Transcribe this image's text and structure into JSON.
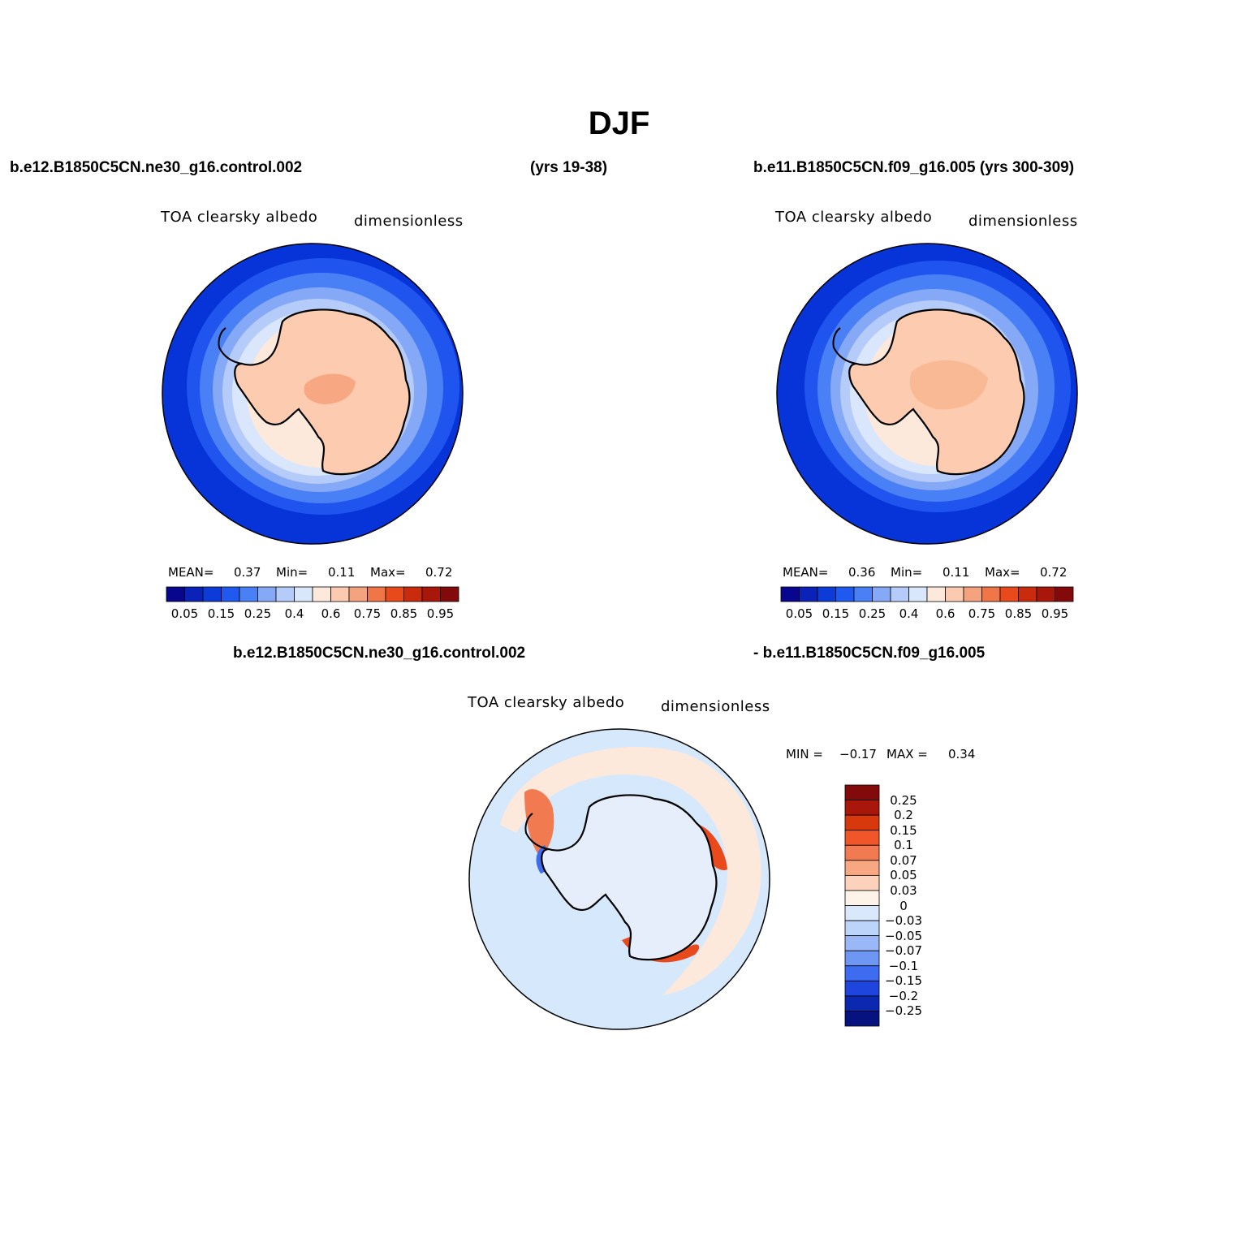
{
  "title": "DJF",
  "case_left": "b.e12.B1850C5CN.ne30_g16.control.002",
  "years_left": "(yrs 19-38)",
  "case_right": "b.e11.B1850C5CN.f09_g16.005 (yrs 300-309)",
  "diff_case_left": "b.e12.B1850C5CN.ne30_g16.control.002",
  "diff_case_right": "- b.e11.B1850C5CN.f09_g16.005",
  "panels": [
    {
      "variable": "TOA clearsky albedo",
      "units": "dimensionless",
      "stats": {
        "mean_label": "MEAN=",
        "mean": "0.37",
        "min_label": "Min=",
        "min": "0.11",
        "max_label": "Max=",
        "max": "0.72"
      }
    },
    {
      "variable": "TOA clearsky albedo",
      "units": "dimensionless",
      "stats": {
        "mean_label": "MEAN=",
        "mean": "0.36",
        "min_label": "Min=",
        "min": "0.11",
        "max_label": "Max=",
        "max": "0.72"
      }
    },
    {
      "variable": "TOA clearsky albedo",
      "units": "dimensionless",
      "stats": {
        "min_label": "MIN =",
        "min": "−0.17",
        "max_label": "MAX =",
        "max": "0.34"
      }
    }
  ],
  "colorbar_abs": {
    "colors": [
      "#08068f",
      "#0a22b8",
      "#0d3bd8",
      "#1f59f0",
      "#4a80f5",
      "#86a9f7",
      "#b5cbf9",
      "#dae6fb",
      "#fde9db",
      "#fbcab0",
      "#f5a37e",
      "#f07648",
      "#e84a1c",
      "#c92c0c",
      "#a8170a",
      "#830a0a"
    ],
    "labels": [
      "0.05",
      "0.15",
      "0.25",
      "0.4",
      "0.6",
      "0.75",
      "0.85",
      "0.95"
    ]
  },
  "colorbar_diff": {
    "colors": [
      "#830a0a",
      "#a8170a",
      "#d8390c",
      "#f0562a",
      "#f27a50",
      "#f7a882",
      "#fcd2bc",
      "#fef3e8",
      "#d9e8fb",
      "#bcd3fa",
      "#9ab8f7",
      "#6e97f4",
      "#3e6cf0",
      "#1e45de",
      "#0b28b0",
      "#06137f"
    ],
    "labels": [
      "0.25",
      "0.2",
      "0.15",
      "0.1",
      "0.07",
      "0.05",
      "0.03",
      "0",
      "−0.03",
      "−0.05",
      "−0.07",
      "−0.1",
      "−0.15",
      "−0.2",
      "−0.25"
    ]
  },
  "colors": {
    "ocean_low": "#0734d8",
    "land_high": "#fccbb0",
    "diff_base": "#d6e8fc",
    "coast": "#000000"
  }
}
